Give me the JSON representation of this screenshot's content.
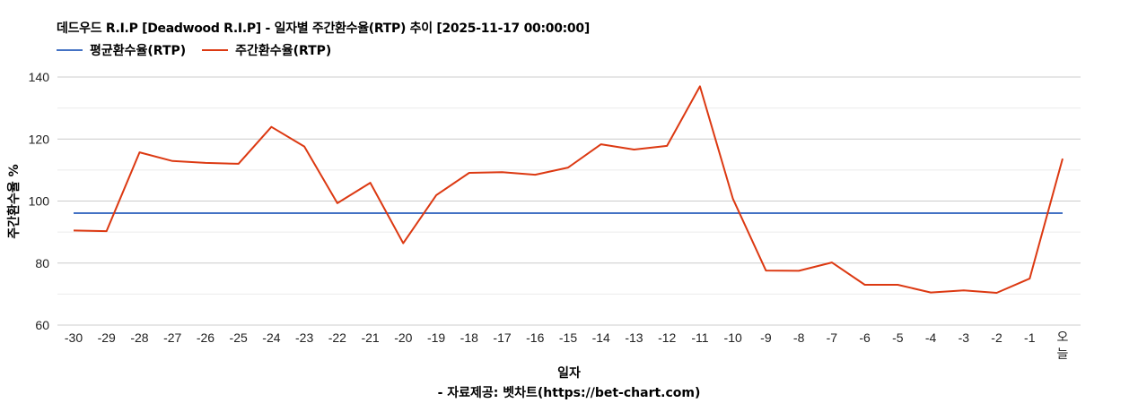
{
  "title": "데드우드 R.I.P [Deadwood R.I.P] - 일자별 주간환수율(RTP) 추이 [2025-11-17 00:00:00]",
  "legend": [
    {
      "label": "평균환수율(RTP)",
      "color": "#4472c4"
    },
    {
      "label": "주간환수율(RTP)",
      "color": "#dc3912"
    }
  ],
  "y_axis_title": "주간환수율 %",
  "x_axis_title": "일자",
  "source": "- 자료제공: 벳차트(https://bet-chart.com)",
  "chart_data": {
    "type": "line",
    "title": "데드우드 R.I.P [Deadwood R.I.P] - 일자별 주간환수율(RTP) 추이 [2025-11-17 00:00:00]",
    "xlabel": "일자",
    "ylabel": "주간환수율 %",
    "ylim": [
      60,
      140
    ],
    "yticks": [
      60,
      80,
      100,
      120,
      140
    ],
    "minor_gridlines": [
      70,
      90,
      110,
      130
    ],
    "grid": true,
    "legend_position": "top",
    "categories": [
      "-30",
      "-29",
      "-28",
      "-27",
      "-26",
      "-25",
      "-24",
      "-23",
      "-22",
      "-21",
      "-20",
      "-19",
      "-18",
      "-17",
      "-16",
      "-15",
      "-14",
      "-13",
      "-12",
      "-11",
      "-10",
      "-9",
      "-8",
      "-7",
      "-6",
      "-5",
      "-4",
      "-3",
      "-2",
      "-1",
      "오늘"
    ],
    "series": [
      {
        "name": "평균환수율(RTP)",
        "color": "#4472c4",
        "values": [
          96.1,
          96.1,
          96.1,
          96.1,
          96.1,
          96.1,
          96.1,
          96.1,
          96.1,
          96.1,
          96.1,
          96.1,
          96.1,
          96.1,
          96.1,
          96.1,
          96.1,
          96.1,
          96.1,
          96.1,
          96.1,
          96.1,
          96.1,
          96.1,
          96.1,
          96.1,
          96.1,
          96.1,
          96.1,
          96.1,
          96.1
        ]
      },
      {
        "name": "주간환수율(RTP)",
        "color": "#dc3912",
        "values": [
          90.5,
          90.3,
          115.7,
          112.9,
          112.3,
          112.0,
          123.9,
          117.6,
          99.3,
          105.9,
          86.4,
          101.9,
          109.1,
          109.3,
          108.5,
          110.8,
          118.3,
          116.6,
          117.8,
          137.0,
          100.7,
          77.6,
          77.5,
          80.2,
          73.0,
          73.0,
          70.5,
          71.2,
          70.4,
          75.0,
          113.7
        ]
      }
    ]
  }
}
